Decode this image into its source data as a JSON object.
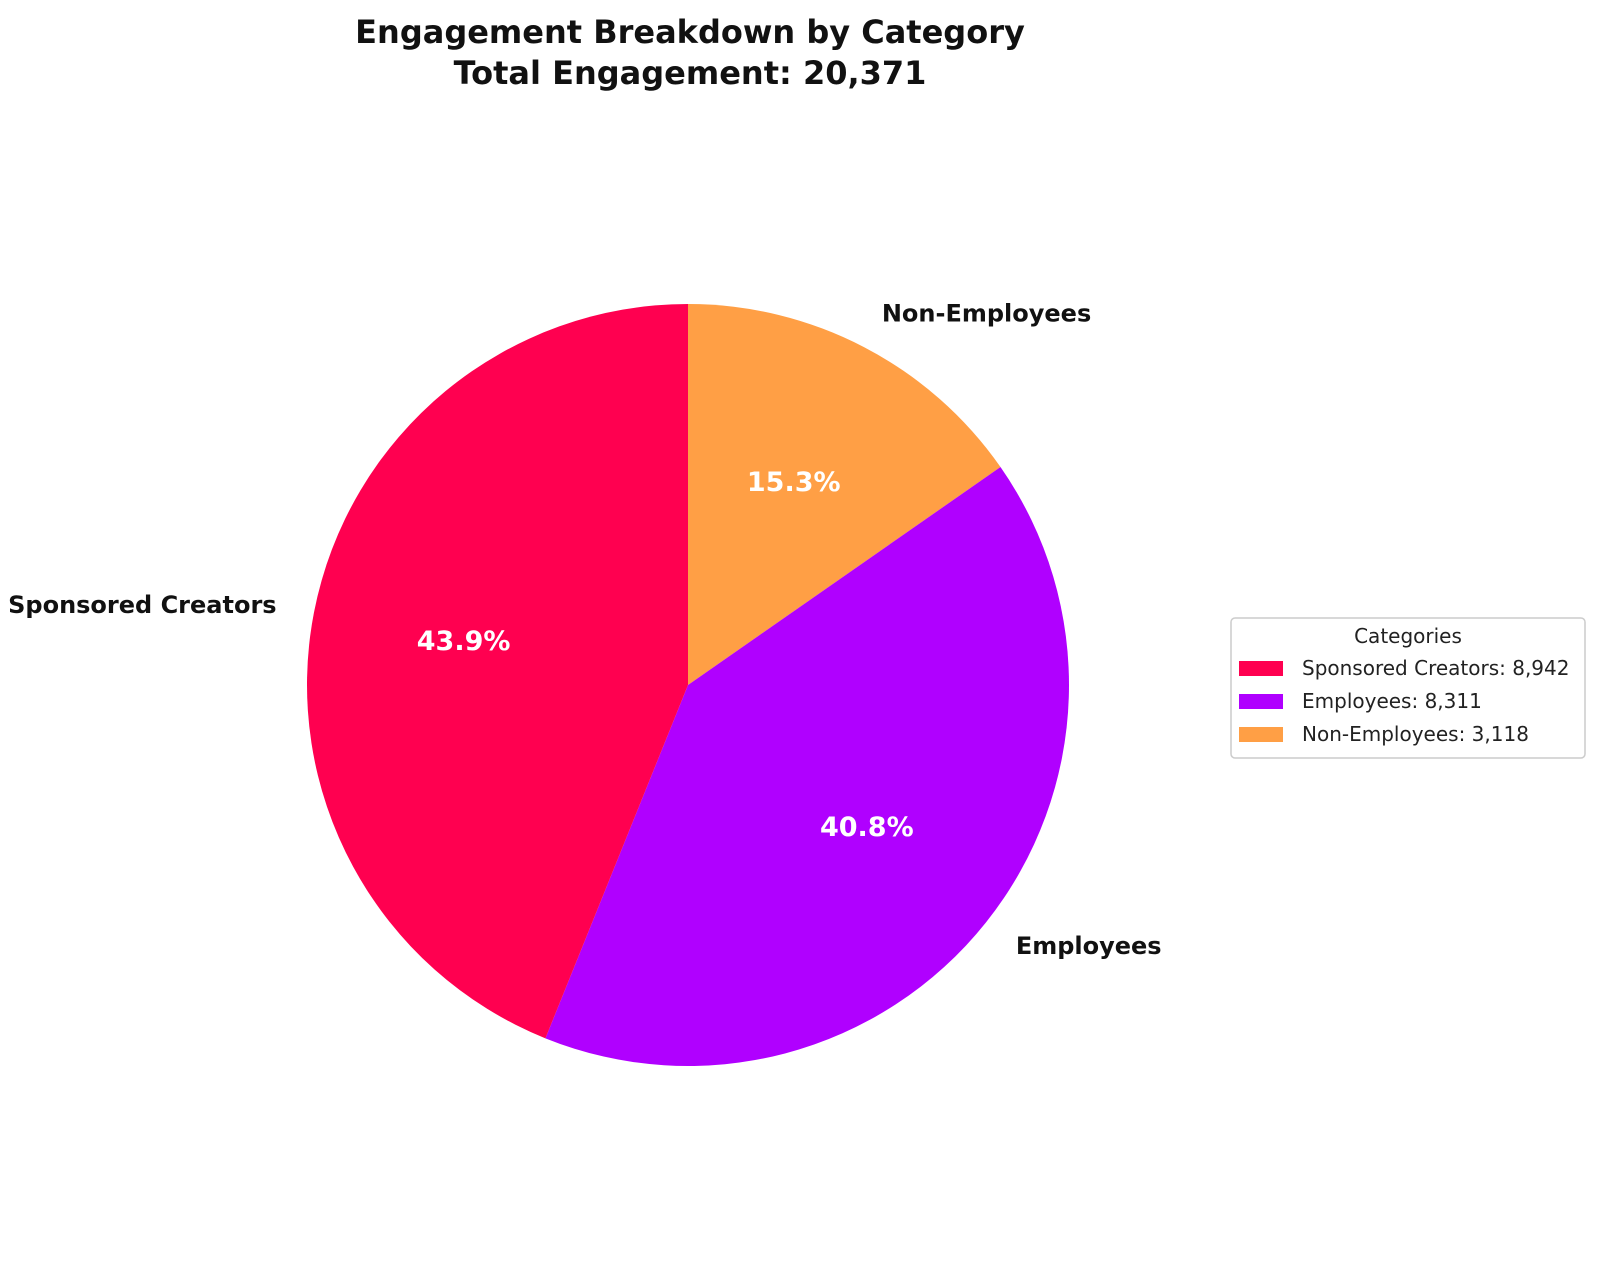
{
  "chart_data": {
    "type": "pie",
    "title": "Engagement Breakdown by Category",
    "subtitle": "Total Engagement: 20,371",
    "total": 20371,
    "start_angle_deg": 90,
    "direction": "clockwise",
    "slices": [
      {
        "label": "Non-Employees",
        "value": 3118,
        "percent_label": "15.3%",
        "legend_label": "Non-Employees: 3,118",
        "color": "#FF9F45"
      },
      {
        "label": "Employees",
        "value": 8311,
        "percent_label": "40.8%",
        "legend_label": "Employees: 8,311",
        "color": "#B000FF"
      },
      {
        "label": "Sponsored Creators",
        "value": 8942,
        "percent_label": "43.9%",
        "legend_label": "Sponsored Creators: 8,942",
        "color": "#FF0050"
      }
    ],
    "legend": {
      "title": "Categories",
      "placement": "right",
      "order": [
        2,
        1,
        0
      ]
    }
  }
}
